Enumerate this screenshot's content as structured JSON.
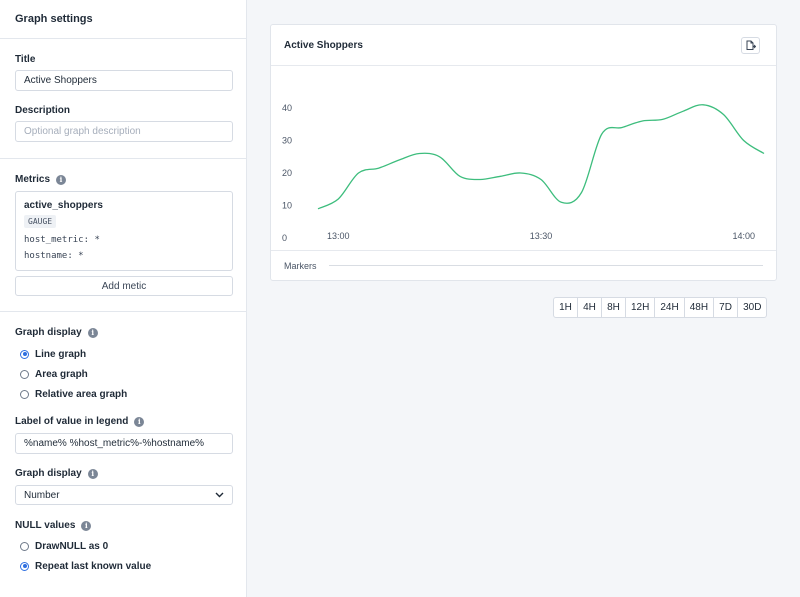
{
  "sidebar": {
    "header": "Graph settings",
    "title_label": "Title",
    "title_value": "Active Shoppers",
    "description_label": "Description",
    "description_placeholder": "Optional graph description",
    "metrics_label": "Metrics",
    "metric": {
      "name": "active_shoppers",
      "type": "GAUGE",
      "tags": [
        "host_metric: *",
        "hostname: *"
      ]
    },
    "add_metric_label": "Add metic",
    "graph_display_label": "Graph display",
    "graph_display_options": [
      "Line graph",
      "Area graph",
      "Relative area graph"
    ],
    "graph_display_selected": 0,
    "legend_label": "Label of value in legend",
    "legend_value": "%name% %host_metric%-%hostname%",
    "graph_display2_label": "Graph display",
    "graph_display2_value": "Number",
    "null_label": "NULL values",
    "null_options": [
      "DrawNULL as 0",
      "Repeat last known value"
    ],
    "null_selected": 1
  },
  "chart": {
    "title": "Active Shoppers",
    "markers_label": "Markers"
  },
  "chart_data": {
    "type": "line",
    "title": "Active Shoppers",
    "xlabel": "",
    "ylabel": "",
    "x_tick_labels": [
      "13:00",
      "13:30",
      "14:00"
    ],
    "y_ticks": [
      0,
      10,
      20,
      30,
      40
    ],
    "ylim": [
      0,
      40
    ],
    "grid": false,
    "series": [
      {
        "color": "#3dbd7d",
        "x_minutes_after_1300": [
          -3,
          0,
          3,
          6,
          9,
          12,
          15,
          18,
          21,
          24,
          27,
          30,
          33,
          36,
          39,
          42,
          45,
          48,
          51,
          54,
          57,
          60,
          63
        ],
        "values": [
          9,
          12,
          20,
          21.5,
          24,
          26,
          25,
          19,
          18,
          19,
          20,
          18,
          11,
          14,
          32,
          34,
          36,
          36.5,
          39,
          41,
          38,
          30,
          26
        ]
      }
    ]
  },
  "time_ranges": [
    "1H",
    "4H",
    "8H",
    "12H",
    "24H",
    "48H",
    "7D",
    "30D"
  ],
  "colors": {
    "accent": "#2f6fe0",
    "line": "#3dbd7d",
    "background": "#f4f6f9"
  }
}
